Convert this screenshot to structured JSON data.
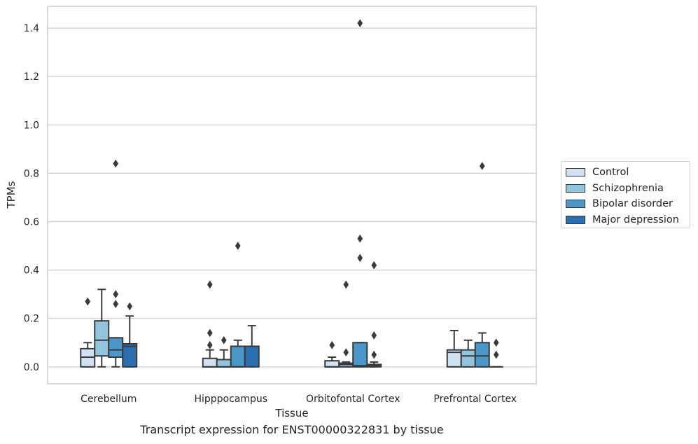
{
  "chart_data": {
    "type": "box",
    "title": "",
    "caption": "Transcript expression for ENST00000322831 by tissue",
    "xlabel": "Tissue",
    "ylabel": "TPMs",
    "ylim": [
      -0.07,
      1.49
    ],
    "yticks": [
      0.0,
      0.2,
      0.4,
      0.6,
      0.8,
      1.0,
      1.2,
      1.4
    ],
    "ytick_labels": [
      "0.0",
      "0.2",
      "0.4",
      "0.6",
      "0.8",
      "1.0",
      "1.2",
      "1.4"
    ],
    "grid": "horizontal",
    "legend_position": "right",
    "categories": [
      "Cerebellum",
      "Hipppocampus",
      "Orbitofontal Cortex",
      "Prefrontal Cortex"
    ],
    "series": [
      {
        "name": "Control",
        "color": "#cfe1f2",
        "boxes": [
          {
            "q1": 0.0,
            "median": 0.04,
            "q3": 0.075,
            "wlow": 0.0,
            "whigh": 0.1,
            "outliers": [
              0.27
            ]
          },
          {
            "q1": 0.0,
            "median": 0.0,
            "q3": 0.035,
            "wlow": 0.0,
            "whigh": 0.07,
            "outliers": [
              0.09,
              0.14,
              0.34
            ]
          },
          {
            "q1": 0.0,
            "median": 0.0,
            "q3": 0.025,
            "wlow": 0.0,
            "whigh": 0.04,
            "outliers": [
              0.09
            ]
          },
          {
            "q1": 0.0,
            "median": 0.06,
            "q3": 0.07,
            "wlow": 0.0,
            "whigh": 0.15,
            "outliers": []
          }
        ]
      },
      {
        "name": "Schizophrenia",
        "color": "#93c4de",
        "boxes": [
          {
            "q1": 0.045,
            "median": 0.11,
            "q3": 0.19,
            "wlow": 0.0,
            "whigh": 0.32,
            "outliers": []
          },
          {
            "q1": 0.0,
            "median": 0.0,
            "q3": 0.03,
            "wlow": 0.0,
            "whigh": 0.07,
            "outliers": [
              0.11
            ]
          },
          {
            "q1": 0.0,
            "median": 0.01,
            "q3": 0.015,
            "wlow": 0.0,
            "whigh": 0.02,
            "outliers": [
              0.06,
              0.34
            ]
          },
          {
            "q1": 0.0,
            "median": 0.045,
            "q3": 0.07,
            "wlow": 0.0,
            "whigh": 0.11,
            "outliers": []
          }
        ]
      },
      {
        "name": "Bipolar disorder",
        "color": "#4a98c9",
        "boxes": [
          {
            "q1": 0.04,
            "median": 0.07,
            "q3": 0.12,
            "wlow": 0.0,
            "whigh": 0.12,
            "outliers": [
              0.26,
              0.3,
              0.84
            ]
          },
          {
            "q1": 0.0,
            "median": 0.0,
            "q3": 0.085,
            "wlow": 0.0,
            "whigh": 0.11,
            "outliers": [
              0.5
            ]
          },
          {
            "q1": 0.0,
            "median": 0.005,
            "q3": 0.1,
            "wlow": 0.0,
            "whigh": 0.1,
            "outliers": [
              0.45,
              0.53,
              1.42
            ]
          },
          {
            "q1": 0.0,
            "median": 0.045,
            "q3": 0.1,
            "wlow": 0.0,
            "whigh": 0.14,
            "outliers": [
              0.83
            ]
          }
        ]
      },
      {
        "name": "Major depression",
        "color": "#2b6fb0",
        "boxes": [
          {
            "q1": 0.0,
            "median": 0.085,
            "q3": 0.095,
            "wlow": 0.0,
            "whigh": 0.21,
            "outliers": [
              0.25
            ]
          },
          {
            "q1": 0.0,
            "median": 0.085,
            "q3": 0.085,
            "wlow": 0.0,
            "whigh": 0.17,
            "outliers": []
          },
          {
            "q1": 0.0,
            "median": 0.005,
            "q3": 0.01,
            "wlow": 0.0,
            "whigh": 0.02,
            "outliers": [
              0.05,
              0.13,
              0.42
            ]
          },
          {
            "q1": 0.0,
            "median": 0.0,
            "q3": 0.0,
            "wlow": 0.0,
            "whigh": 0.0,
            "outliers": [
              0.05,
              0.1
            ]
          }
        ]
      }
    ]
  }
}
